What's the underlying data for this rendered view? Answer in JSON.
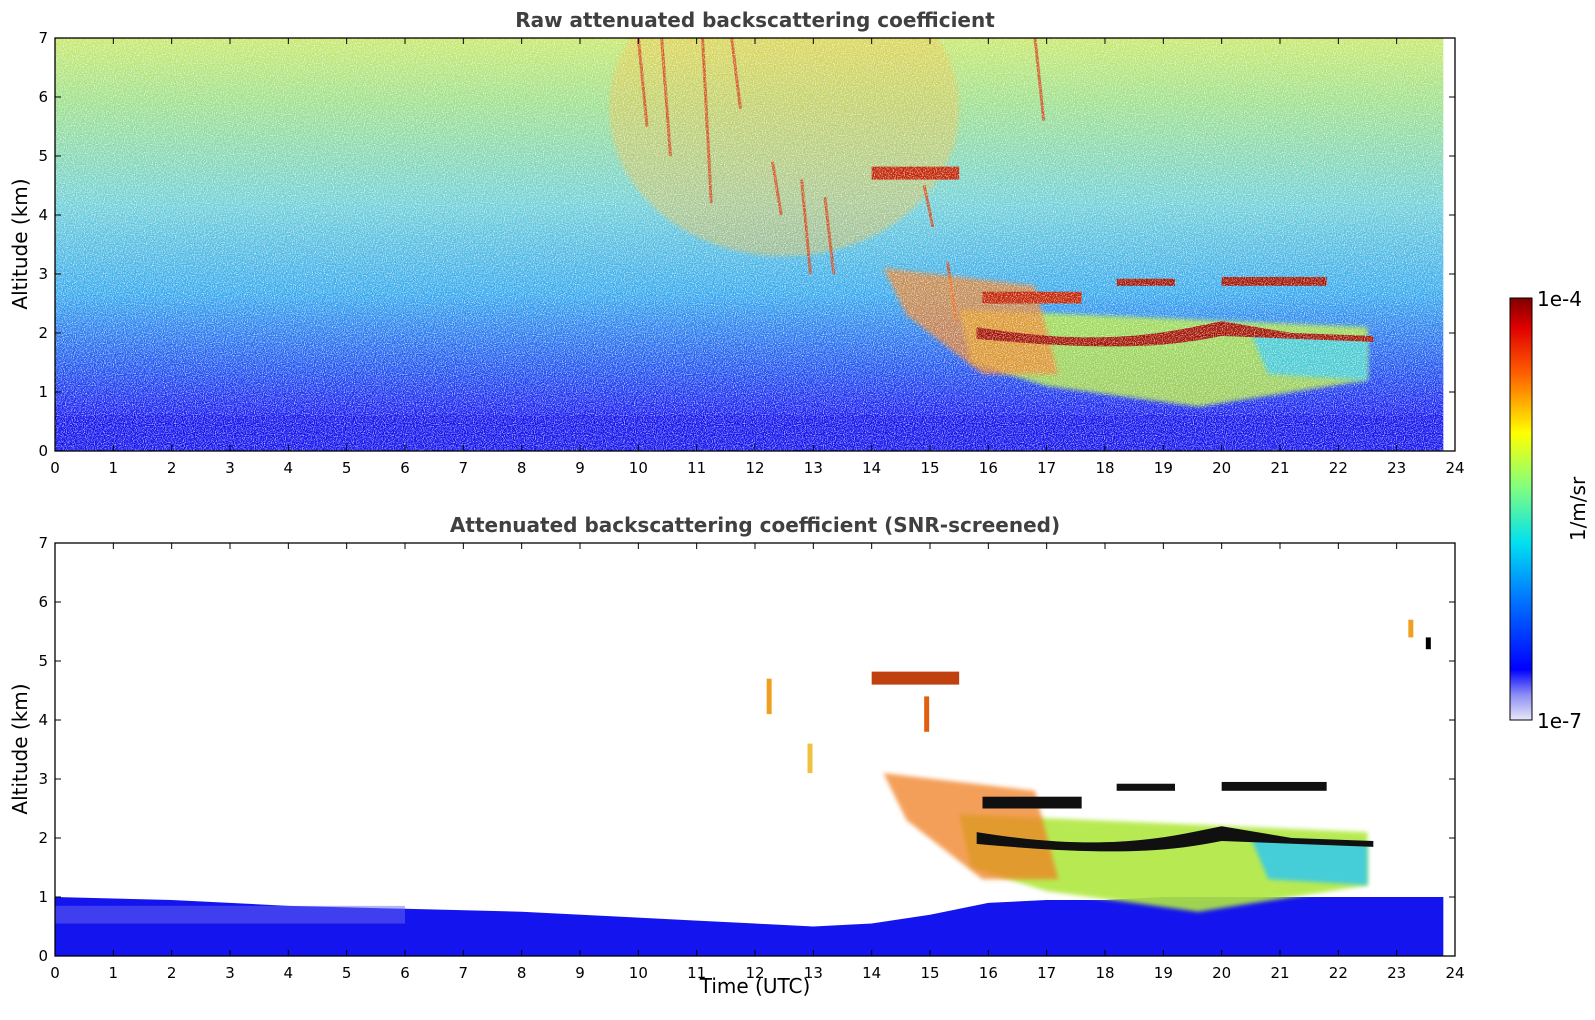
{
  "chart_data": [
    {
      "type": "heatmap",
      "title": "Raw attenuated backscattering coefficient",
      "xlabel": "",
      "ylabel": "Altitude (km)",
      "xlim": [
        0,
        24
      ],
      "ylim": [
        0,
        7
      ],
      "xticks": [
        "0",
        "1",
        "2",
        "3",
        "4",
        "5",
        "6",
        "7",
        "8",
        "9",
        "10",
        "11",
        "12",
        "13",
        "14",
        "15",
        "16",
        "17",
        "18",
        "19",
        "20",
        "21",
        "22",
        "23",
        "24"
      ],
      "yticks": [
        "0",
        "1",
        "2",
        "3",
        "4",
        "5",
        "6",
        "7"
      ],
      "data_end_time": 23.8,
      "screened": false,
      "features": [
        {
          "kind": "surface_layer",
          "t0": 0,
          "t1": 23.8,
          "top": 0.6
        },
        {
          "kind": "water_cloud_layer",
          "t0": 15.8,
          "t1": 22.6,
          "top": 2.05,
          "base": 1.75
        },
        {
          "kind": "water_cloud_layer",
          "t0": 18.2,
          "t1": 22.0,
          "top": 2.9,
          "base": 2.8
        },
        {
          "kind": "aerosol_field",
          "t0": 15.5,
          "t1": 22.5,
          "top": 2.2,
          "base": 0.8
        },
        {
          "kind": "ice_streak",
          "t0": 9.7,
          "t1": 15.3,
          "top": 7.0,
          "base": 2.2
        },
        {
          "kind": "small_cloud",
          "t0": 14.0,
          "t1": 15.5,
          "top": 4.8,
          "base": 4.6
        }
      ],
      "grid": false
    },
    {
      "type": "heatmap",
      "title": "Attenuated backscattering coefficient (SNR-screened)",
      "xlabel": "Time (UTC)",
      "ylabel": "Altitude (km)",
      "xlim": [
        0,
        24
      ],
      "ylim": [
        0,
        7
      ],
      "xticks": [
        "0",
        "1",
        "2",
        "3",
        "4",
        "5",
        "6",
        "7",
        "8",
        "9",
        "10",
        "11",
        "12",
        "13",
        "14",
        "15",
        "16",
        "17",
        "18",
        "19",
        "20",
        "21",
        "22",
        "23",
        "24"
      ],
      "yticks": [
        "0",
        "1",
        "2",
        "3",
        "4",
        "5",
        "6",
        "7"
      ],
      "data_end_time": 23.8,
      "screened": true,
      "boundary_layer_top_km": [
        [
          0,
          1.0
        ],
        [
          2,
          0.95
        ],
        [
          4,
          0.85
        ],
        [
          6,
          0.8
        ],
        [
          8,
          0.75
        ],
        [
          10,
          0.65
        ],
        [
          11,
          0.6
        ],
        [
          12,
          0.55
        ],
        [
          13,
          0.5
        ],
        [
          14,
          0.55
        ],
        [
          15,
          0.7
        ],
        [
          16,
          0.9
        ],
        [
          17,
          0.95
        ],
        [
          18,
          0.95
        ],
        [
          19,
          1.0
        ],
        [
          20,
          1.0
        ],
        [
          21,
          1.0
        ],
        [
          22,
          1.0
        ],
        [
          23,
          1.0
        ],
        [
          23.8,
          1.0
        ]
      ],
      "grid": false
    }
  ],
  "colorbar": {
    "label": "1/m/sr",
    "max_label": "1e-4",
    "min_label": "1e-7",
    "colormap": "jet",
    "scale": "log",
    "range": [
      1e-07,
      0.0001
    ]
  }
}
